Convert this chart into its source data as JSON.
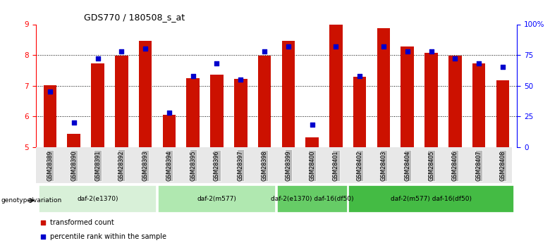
{
  "title": "GDS770 / 180508_s_at",
  "samples": [
    "GSM28389",
    "GSM28390",
    "GSM28391",
    "GSM28392",
    "GSM28393",
    "GSM28394",
    "GSM28395",
    "GSM28396",
    "GSM28397",
    "GSM28398",
    "GSM28399",
    "GSM28400",
    "GSM28401",
    "GSM28402",
    "GSM28403",
    "GSM28404",
    "GSM28405",
    "GSM28406",
    "GSM28407",
    "GSM28408"
  ],
  "bar_values": [
    7.02,
    5.42,
    7.72,
    7.98,
    8.45,
    6.05,
    7.25,
    7.35,
    7.22,
    7.98,
    8.45,
    5.32,
    8.98,
    7.28,
    8.88,
    8.28,
    8.08,
    7.98,
    7.72,
    7.18
  ],
  "percentile_dots": [
    45,
    20,
    72,
    78,
    80,
    28,
    58,
    68,
    55,
    78,
    82,
    18,
    82,
    58,
    82,
    78,
    78,
    72,
    68,
    65
  ],
  "ylim": [
    5,
    9
  ],
  "ylim_right": [
    0,
    100
  ],
  "yticks_left": [
    5,
    6,
    7,
    8,
    9
  ],
  "yticks_right": [
    0,
    25,
    50,
    75,
    100
  ],
  "yticklabels_right": [
    "0",
    "25",
    "50",
    "75",
    "100%"
  ],
  "bar_color": "#cc1100",
  "dot_color": "#0000cc",
  "bar_bottom": 5.0,
  "groups": [
    {
      "label": "daf-2(e1370)",
      "start": 0,
      "end": 5,
      "color": "#d8f0d8"
    },
    {
      "label": "daf-2(m577)",
      "start": 5,
      "end": 10,
      "color": "#b0e8b0"
    },
    {
      "label": "daf-2(e1370) daf-16(df50)",
      "start": 10,
      "end": 13,
      "color": "#66cc66"
    },
    {
      "label": "daf-2(m577) daf-16(df50)",
      "start": 13,
      "end": 20,
      "color": "#44bb44"
    }
  ],
  "legend_items": [
    {
      "label": "transformed count",
      "color": "#cc1100"
    },
    {
      "label": "percentile rank within the sample",
      "color": "#0000cc"
    }
  ],
  "genotype_label": "genotype/variation",
  "tick_label_bg": "#bbbbbb"
}
